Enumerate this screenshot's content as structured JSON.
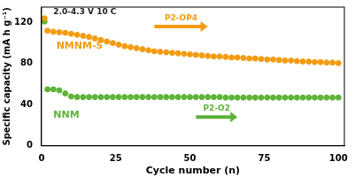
{
  "chart_data": {
    "type": "scatter",
    "x_label": "Cycle number (n)",
    "y_label": "Specific capacity (mA h g⁻¹)",
    "annotations": [
      "2.0-4.3 V 10 C",
      "P2-OP4",
      "P2-O2"
    ],
    "xlim": [
      0,
      102
    ],
    "xticks": [
      0,
      25,
      50,
      75,
      100
    ],
    "ylim": [
      0,
      135
    ],
    "yticks": [
      0,
      40,
      80,
      120
    ],
    "grid": false,
    "x": [
      1,
      2,
      4,
      6,
      8,
      10,
      12,
      14,
      16,
      18,
      20,
      22,
      24,
      26,
      28,
      30,
      32,
      34,
      36,
      38,
      40,
      42,
      44,
      46,
      48,
      50,
      52,
      54,
      56,
      58,
      60,
      62,
      64,
      66,
      68,
      70,
      72,
      74,
      76,
      78,
      80,
      82,
      84,
      86,
      88,
      90,
      92,
      94,
      96,
      98,
      100
    ],
    "series": [
      {
        "name": "NMNM-5",
        "color": "#f39c12",
        "marker": "circle",
        "values": [
          124,
          112,
          111,
          110.5,
          110,
          109,
          108,
          107,
          106,
          104.5,
          103,
          101.5,
          100,
          98.5,
          97,
          96,
          95,
          94,
          93,
          92,
          91.5,
          91,
          90.5,
          90,
          89.5,
          89,
          88.5,
          88,
          87.5,
          87,
          87,
          86.5,
          86,
          86,
          85.5,
          85,
          85,
          84.5,
          84,
          84,
          83.5,
          83,
          83,
          82.5,
          82,
          82,
          81.5,
          81.5,
          81,
          81,
          80.5
        ]
      },
      {
        "name": "NNM",
        "color": "#5cb338",
        "marker": "circle",
        "values": [
          121,
          55,
          55,
          54,
          51,
          48,
          47.5,
          47.5,
          47.5,
          47.5,
          47.5,
          47.5,
          47.5,
          47.5,
          47.5,
          47.5,
          47.5,
          47.5,
          47.5,
          47.5,
          47.5,
          47.5,
          47.5,
          47.5,
          47.5,
          47.5,
          47.5,
          47.5,
          47.5,
          47.5,
          47.5,
          47,
          47,
          47,
          47,
          47,
          47,
          47,
          47,
          47,
          47,
          47,
          47,
          47,
          47,
          47,
          47,
          47,
          47,
          47,
          47
        ]
      }
    ]
  }
}
